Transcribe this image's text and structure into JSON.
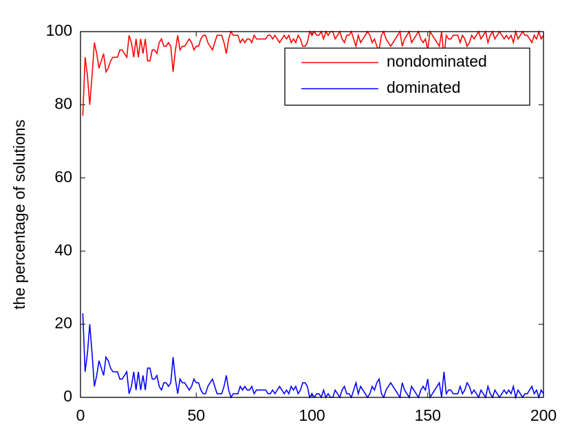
{
  "chart_data": {
    "type": "line",
    "y_label": "the percentage of solutions",
    "x": [
      1,
      2,
      3,
      4,
      5,
      6,
      7,
      8,
      9,
      10,
      11,
      12,
      13,
      14,
      15,
      16,
      17,
      18,
      19,
      20,
      21,
      22,
      23,
      24,
      25,
      26,
      27,
      28,
      29,
      30,
      31,
      32,
      33,
      34,
      35,
      36,
      37,
      38,
      39,
      40,
      41,
      42,
      43,
      44,
      45,
      46,
      47,
      48,
      49,
      50,
      51,
      52,
      53,
      54,
      55,
      56,
      57,
      58,
      59,
      60,
      61,
      62,
      63,
      64,
      65,
      66,
      67,
      68,
      69,
      70,
      71,
      72,
      73,
      74,
      75,
      76,
      77,
      78,
      79,
      80,
      81,
      82,
      83,
      84,
      85,
      86,
      87,
      88,
      89,
      90,
      91,
      92,
      93,
      94,
      95,
      96,
      97,
      98,
      99,
      100,
      101,
      102,
      103,
      104,
      105,
      106,
      107,
      108,
      109,
      110,
      111,
      112,
      113,
      114,
      115,
      116,
      117,
      118,
      119,
      120,
      121,
      122,
      123,
      124,
      125,
      126,
      127,
      128,
      129,
      130,
      131,
      132,
      133,
      134,
      135,
      136,
      137,
      138,
      139,
      140,
      141,
      142,
      143,
      144,
      145,
      146,
      147,
      148,
      149,
      150,
      151,
      152,
      153,
      154,
      155,
      156,
      157,
      158,
      159,
      160,
      161,
      162,
      163,
      164,
      165,
      166,
      167,
      168,
      169,
      170,
      171,
      172,
      173,
      174,
      175,
      176,
      177,
      178,
      179,
      180,
      181,
      182,
      183,
      184,
      185,
      186,
      187,
      188,
      189,
      190,
      191,
      192,
      193,
      194,
      195,
      196,
      197,
      198,
      199,
      200
    ],
    "series": [
      {
        "name": "nondominated",
        "color": "#ff0000",
        "values": [
          77,
          93,
          88,
          80,
          88,
          97,
          94,
          90,
          92,
          94,
          89,
          90,
          92,
          93,
          93,
          93,
          95,
          95,
          94,
          93,
          99,
          97,
          93,
          98,
          93,
          98,
          94,
          98,
          92,
          92,
          95,
          95,
          94,
          97,
          98,
          96,
          96,
          97,
          96,
          89,
          95,
          99,
          95,
          96,
          96,
          97,
          98,
          97,
          95,
          96,
          96,
          98,
          99,
          99,
          97,
          96,
          95,
          97,
          99,
          99,
          99,
          97,
          94,
          98,
          100,
          99,
          99,
          99,
          97,
          98,
          97,
          98,
          98,
          97,
          99,
          98,
          98,
          98,
          98,
          98,
          99,
          99,
          98,
          99,
          98,
          97,
          98,
          99,
          98,
          99,
          97,
          98,
          97,
          99,
          98,
          96,
          96,
          97,
          100,
          99,
          100,
          99,
          99,
          100,
          98,
          100,
          99,
          100,
          100,
          98,
          99,
          100,
          98,
          97,
          99,
          99,
          100,
          98,
          96,
          99,
          97,
          98,
          99,
          100,
          99,
          97,
          98,
          96,
          95,
          99,
          100,
          98,
          97,
          96,
          97,
          98,
          99,
          100,
          96,
          98,
          99,
          100,
          97,
          98,
          99,
          100,
          98,
          97,
          98,
          95,
          100,
          99,
          98,
          97,
          96,
          100,
          93,
          99,
          98,
          98,
          99,
          99,
          99,
          97,
          99,
          98,
          96,
          97,
          99,
          98,
          99,
          100,
          98,
          99,
          100,
          97,
          99,
          100,
          98,
          99,
          100,
          99,
          98,
          99,
          98,
          99,
          97,
          100,
          98,
          99,
          100,
          99,
          99,
          98,
          97,
          99,
          98,
          100,
          98,
          99
        ]
      },
      {
        "name": "dominated",
        "color": "#0000ff",
        "values": [
          23,
          7,
          12,
          20,
          12,
          3,
          6,
          10,
          8,
          6,
          11,
          10,
          8,
          7,
          7,
          7,
          5,
          5,
          6,
          7,
          1,
          3,
          7,
          2,
          7,
          2,
          6,
          2,
          8,
          8,
          5,
          5,
          6,
          3,
          2,
          4,
          4,
          3,
          4,
          11,
          5,
          1,
          5,
          4,
          4,
          3,
          2,
          3,
          5,
          4,
          4,
          2,
          1,
          1,
          3,
          4,
          5,
          3,
          1,
          1,
          1,
          3,
          6,
          2,
          0,
          1,
          1,
          1,
          3,
          2,
          3,
          2,
          2,
          3,
          1,
          2,
          2,
          2,
          2,
          2,
          1,
          1,
          2,
          1,
          2,
          3,
          2,
          1,
          2,
          1,
          3,
          2,
          3,
          1,
          2,
          4,
          4,
          3,
          0,
          1,
          0,
          1,
          1,
          0,
          2,
          0,
          1,
          0,
          0,
          2,
          1,
          0,
          2,
          3,
          1,
          1,
          0,
          2,
          4,
          1,
          3,
          2,
          1,
          0,
          1,
          3,
          2,
          4,
          5,
          1,
          0,
          2,
          3,
          4,
          3,
          2,
          1,
          0,
          4,
          2,
          1,
          0,
          3,
          2,
          1,
          0,
          2,
          3,
          2,
          5,
          0,
          1,
          2,
          3,
          4,
          0,
          7,
          1,
          2,
          2,
          1,
          1,
          1,
          3,
          1,
          2,
          4,
          3,
          1,
          2,
          1,
          0,
          2,
          1,
          0,
          3,
          1,
          0,
          2,
          1,
          0,
          1,
          2,
          1,
          2,
          1,
          3,
          0,
          2,
          1,
          0,
          1,
          1,
          2,
          3,
          1,
          2,
          0,
          2,
          1
        ]
      }
    ],
    "xlim": [
      0,
      200
    ],
    "xticks": [
      0,
      50,
      100,
      150,
      200
    ],
    "ylim": [
      0,
      100
    ],
    "yticks": [
      0,
      20,
      40,
      60,
      80,
      100
    ],
    "legend": "upper right"
  }
}
